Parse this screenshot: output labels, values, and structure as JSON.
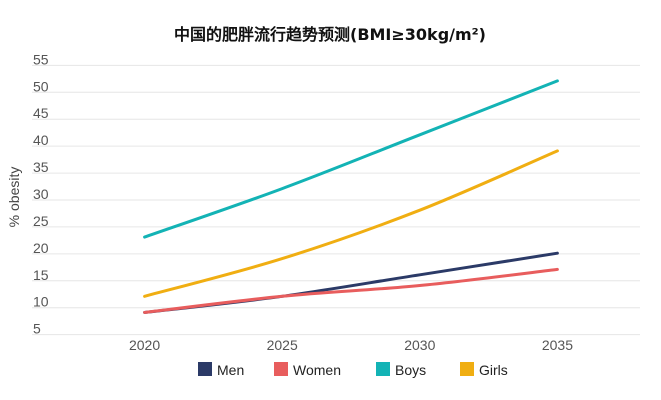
{
  "chart_data": {
    "type": "line",
    "title": "中国的肥胖流行趋势预测(BMI≥30kg/m²)",
    "xlabel": "",
    "ylabel": "% obesity",
    "x_ticks": [
      "2020",
      "2025",
      "2030",
      "2035"
    ],
    "y_ticks": [
      "5",
      "10",
      "15",
      "20",
      "25",
      "30",
      "35",
      "40",
      "45",
      "50",
      "55"
    ],
    "xlim": [
      2017,
      2038
    ],
    "ylim": [
      4,
      56
    ],
    "grid": true,
    "legend_position": "bottom",
    "series": [
      {
        "name": "Men",
        "color": "#2b3a67",
        "x": [
          2020,
          2025,
          2030,
          2035
        ],
        "values": [
          8,
          11,
          15,
          19
        ]
      },
      {
        "name": "Women",
        "color": "#e85d5d",
        "x": [
          2020,
          2025,
          2030,
          2035
        ],
        "values": [
          8,
          11,
          13,
          16
        ]
      },
      {
        "name": "Boys",
        "color": "#13b3b5",
        "x": [
          2020,
          2025,
          2030,
          2035
        ],
        "values": [
          22,
          31,
          41,
          51
        ]
      },
      {
        "name": "Girls",
        "color": "#f0ae12",
        "x": [
          2020,
          2025,
          2030,
          2035
        ],
        "values": [
          11,
          18,
          27,
          38
        ]
      }
    ]
  }
}
